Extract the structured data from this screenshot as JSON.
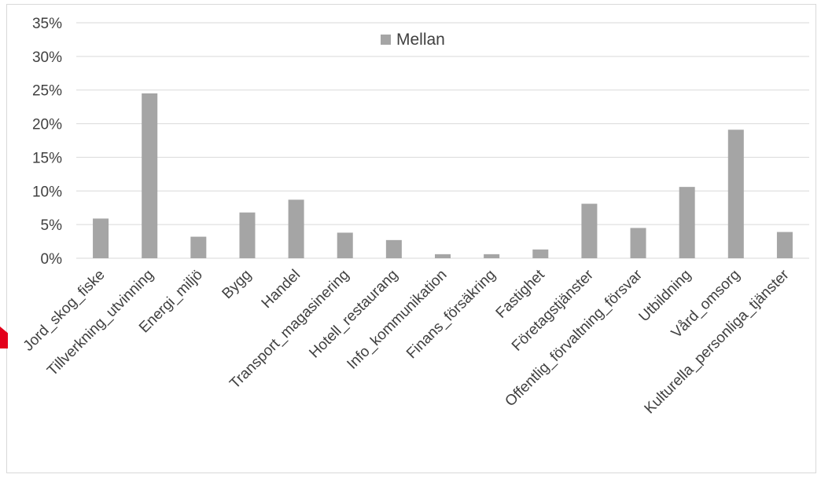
{
  "colors": {
    "bar": "#a5a5a5",
    "grid": "#d9d9d9",
    "text": "#404040",
    "marker": "#e3001b"
  },
  "chart_data": {
    "type": "bar",
    "title": "",
    "xlabel": "",
    "ylabel": "",
    "ylim": [
      0,
      0.35
    ],
    "grid": true,
    "legend": "top-center",
    "y_ticks": [
      "0%",
      "5%",
      "10%",
      "15%",
      "20%",
      "25%",
      "30%",
      "35%"
    ],
    "categories": [
      "Jord_skog_fiske",
      "Tillverkning_utvinning",
      "Energi_miljö",
      "Bygg",
      "Handel",
      "Transport_magasinering",
      "Hotell_restaurang",
      "Info_kommunikation",
      "Finans_försäkring",
      "Fastighet",
      "Företagstjänster",
      "Offentlig_förvaltning_försvar",
      "Utbildning",
      "Vård_omsorg",
      "Kulturella_personliga_tjänster"
    ],
    "series": [
      {
        "name": "Mellan",
        "values": [
          0.059,
          0.245,
          0.032,
          0.068,
          0.087,
          0.038,
          0.027,
          0.006,
          0.006,
          0.013,
          0.081,
          0.045,
          0.106,
          0.191,
          0.039
        ]
      }
    ]
  }
}
